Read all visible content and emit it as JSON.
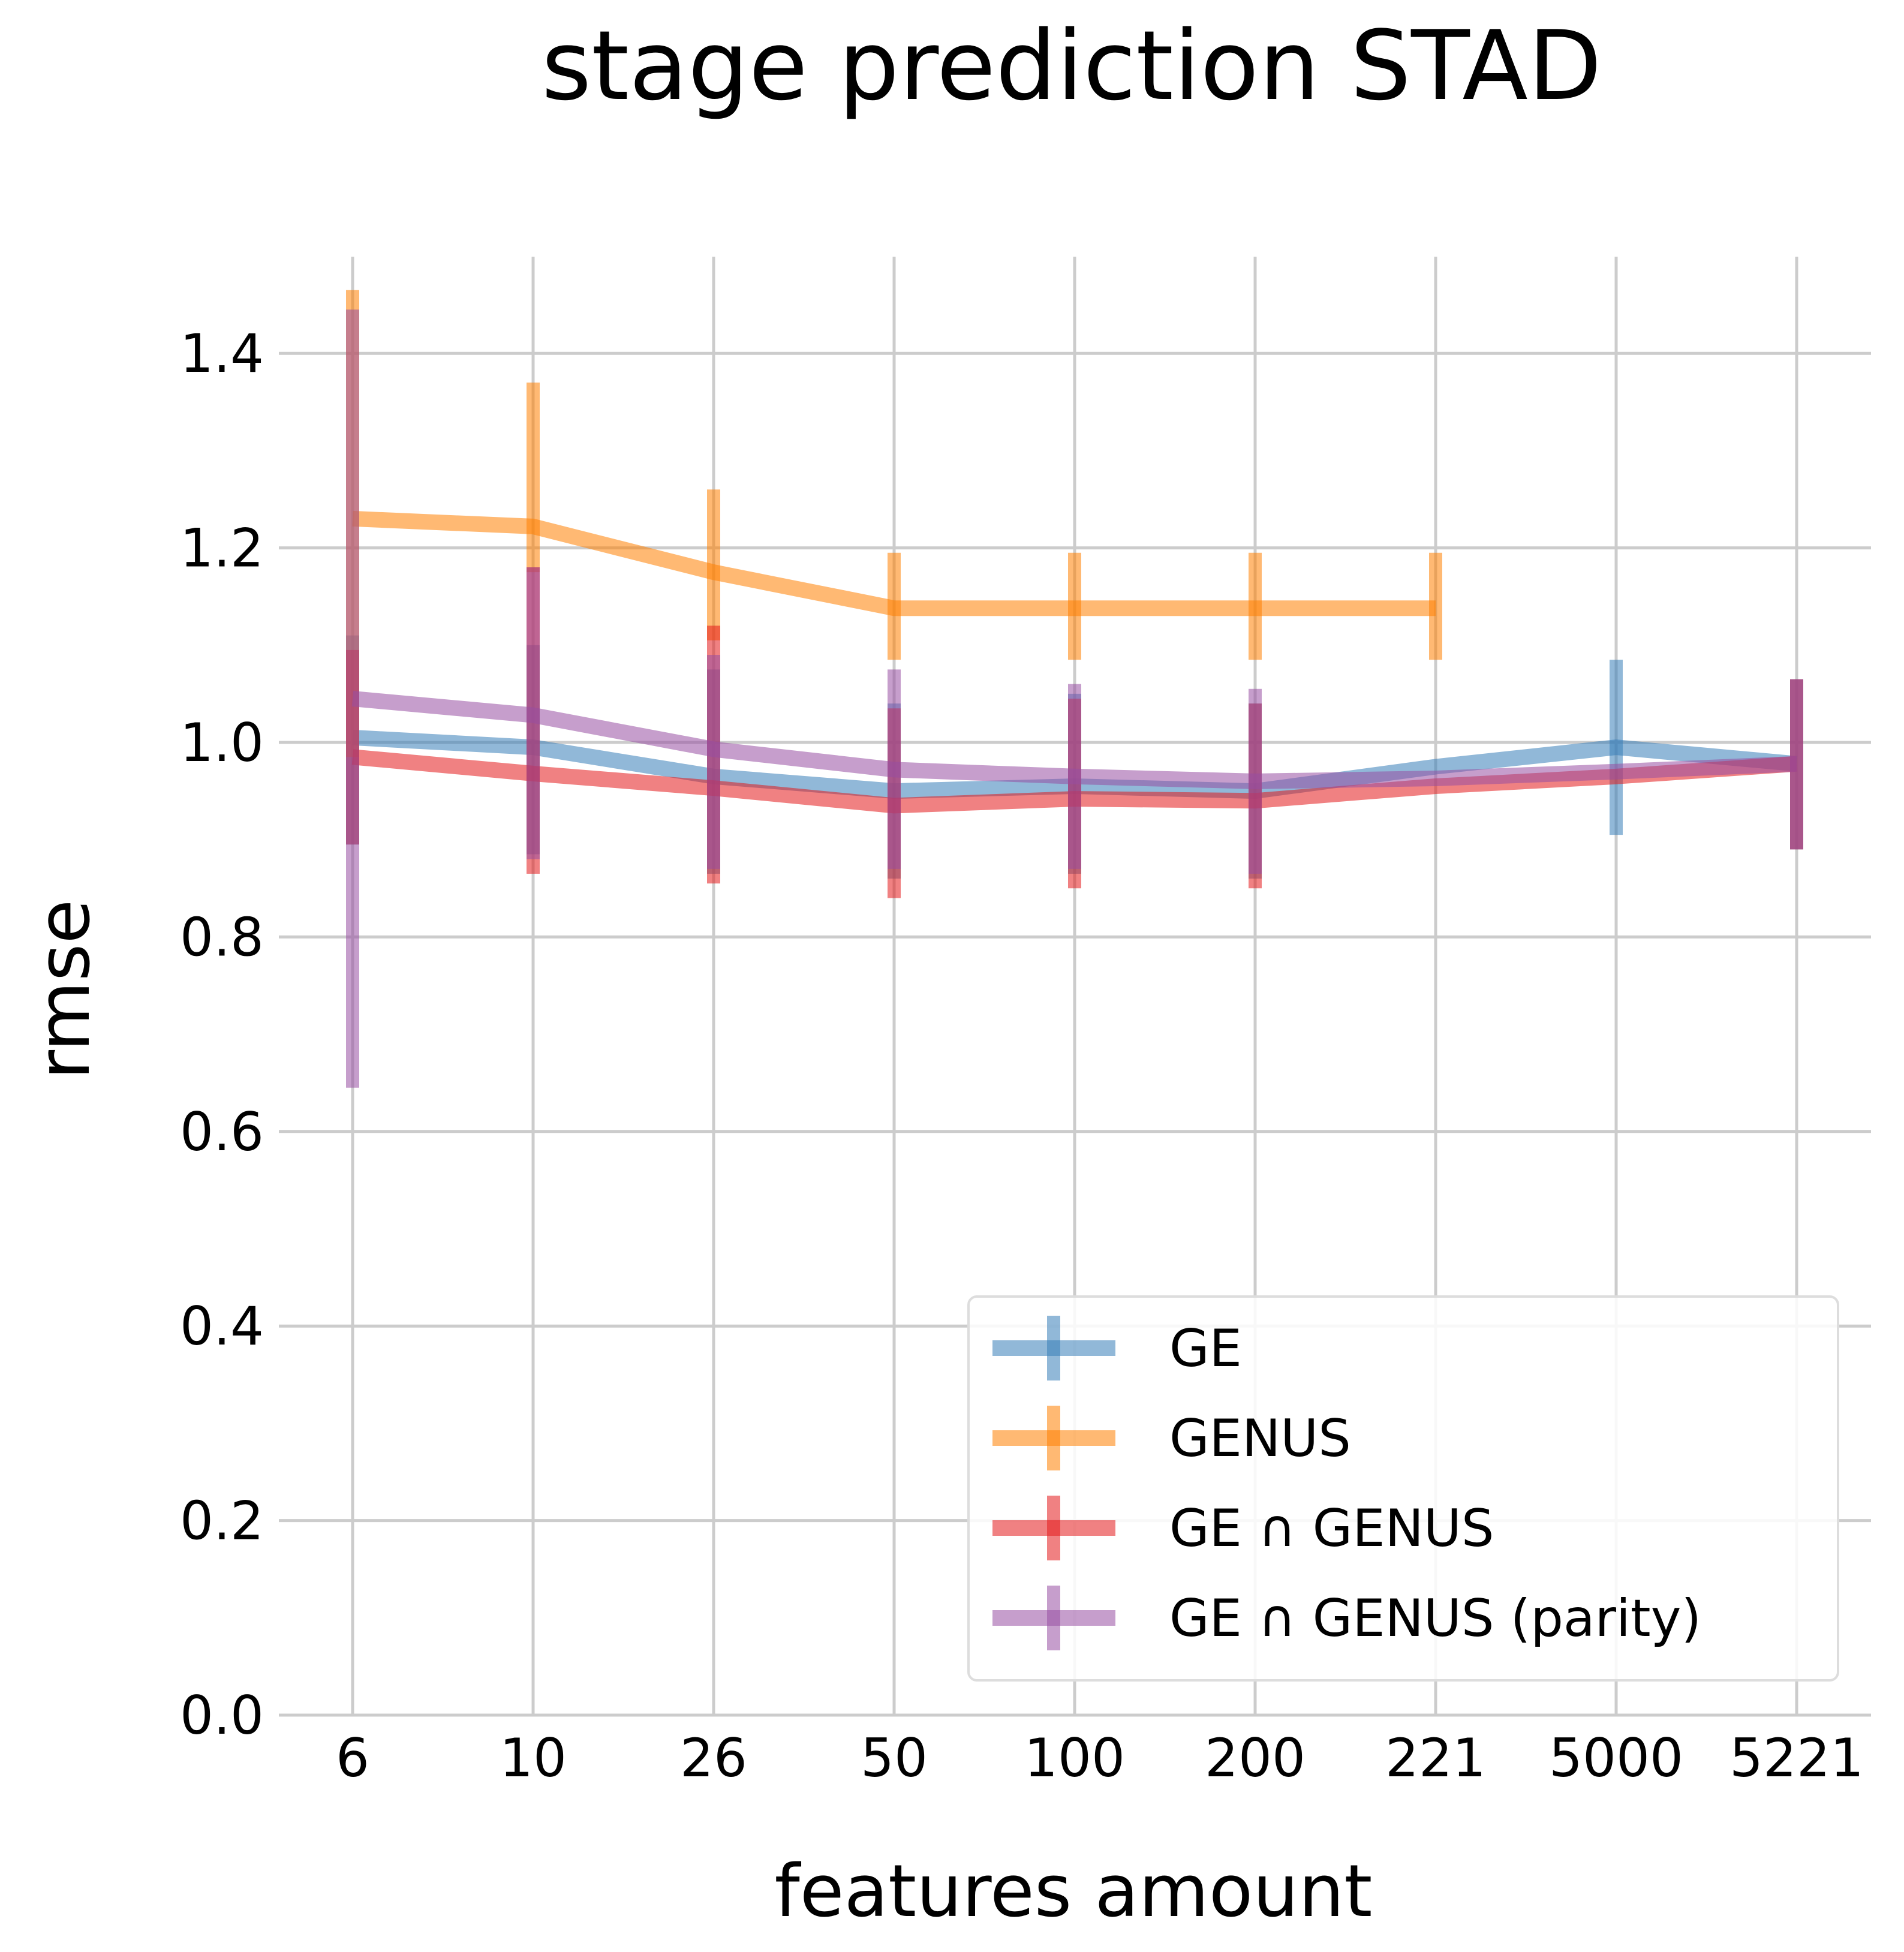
{
  "chart_data": {
    "type": "line",
    "title": "stage prediction STAD",
    "xlabel": "features amount",
    "ylabel": "rmse",
    "categories": [
      "6",
      "10",
      "26",
      "50",
      "100",
      "200",
      "221",
      "5000",
      "5221"
    ],
    "yticks": [
      "0.0",
      "0.2",
      "0.4",
      "0.6",
      "0.8",
      "1.0",
      "1.2",
      "1.4"
    ],
    "ylim": [
      0,
      1.5
    ],
    "grid": true,
    "legend_position": "lower-right",
    "series": [
      {
        "name": "GE",
        "color": "#377eb8",
        "values": [
          1.005,
          0.995,
          0.965,
          0.95,
          0.955,
          0.95,
          0.975,
          0.995,
          0.978
        ],
        "err_low": [
          0.895,
          0.885,
          0.865,
          0.86,
          0.865,
          0.86,
          null,
          0.905,
          0.89
        ],
        "err_high": [
          1.11,
          1.1,
          1.075,
          1.04,
          1.05,
          1.04,
          null,
          1.085,
          1.065
        ]
      },
      {
        "name": "GENUS",
        "color": "#ff7f00",
        "values": [
          1.23,
          1.222,
          1.175,
          1.138,
          1.138,
          1.138,
          1.138,
          null,
          null
        ],
        "err_low": [
          0.985,
          1.175,
          1.105,
          1.085,
          1.085,
          1.085,
          1.085,
          null,
          null
        ],
        "err_high": [
          1.465,
          1.37,
          1.26,
          1.195,
          1.195,
          1.195,
          1.195,
          null,
          null
        ]
      },
      {
        "name": "GE ∩ GENUS",
        "color": "#e41a1c",
        "values": [
          0.985,
          0.968,
          0.953,
          0.935,
          0.942,
          0.94,
          0.955,
          0.965,
          0.978
        ],
        "err_low": [
          0.895,
          0.865,
          0.855,
          0.84,
          0.85,
          0.85,
          null,
          null,
          0.89
        ],
        "err_high": [
          1.095,
          1.18,
          1.12,
          1.035,
          1.045,
          1.04,
          null,
          null,
          1.065
        ]
      },
      {
        "name": "GE ∩ GENUS (parity)",
        "color": "#984ea3",
        "values": [
          1.045,
          1.028,
          0.993,
          0.972,
          0.965,
          0.96,
          0.963,
          0.97,
          0.978
        ],
        "err_low": [
          0.645,
          0.88,
          0.87,
          0.87,
          0.87,
          0.865,
          null,
          null,
          0.89
        ],
        "err_high": [
          1.445,
          1.18,
          1.09,
          1.075,
          1.06,
          1.055,
          null,
          null,
          1.065
        ]
      }
    ]
  }
}
